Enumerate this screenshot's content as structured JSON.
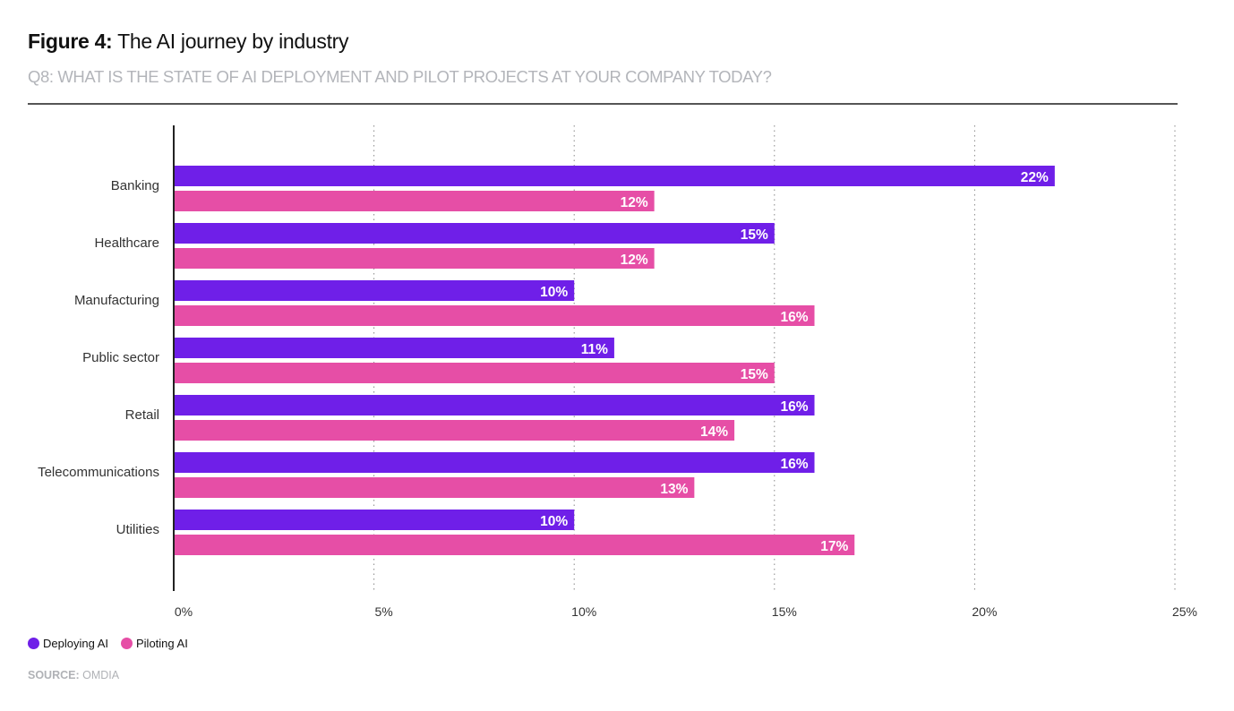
{
  "header": {
    "figure_label": "Figure 4:",
    "title": "The AI journey by industry",
    "subtitle": "Q8: WHAT IS THE STATE OF AI DEPLOYMENT AND PILOT PROJECTS AT YOUR COMPANY TODAY?"
  },
  "footer": {
    "source_label": "SOURCE:",
    "source_value": "OMDIA"
  },
  "chart_data": {
    "type": "bar",
    "orientation": "horizontal",
    "title": "The AI journey by industry",
    "xlabel": "",
    "ylabel": "",
    "categories": [
      "Banking",
      "Healthcare",
      "Manufacturing",
      "Public sector",
      "Retail",
      "Telecommunications",
      "Utilities"
    ],
    "series": [
      {
        "name": "Deploying AI",
        "color": "#6f1fe8",
        "values": [
          22,
          15,
          10,
          11,
          16,
          16,
          10
        ]
      },
      {
        "name": "Piloting AI",
        "color": "#e64ea6",
        "values": [
          12,
          12,
          16,
          15,
          14,
          13,
          17
        ]
      }
    ],
    "data_labels": [
      [
        "22%",
        "15%",
        "10%",
        "11%",
        "16%",
        "16%",
        "10%"
      ],
      [
        "12%",
        "12%",
        "16%",
        "15%",
        "14%",
        "13%",
        "17%"
      ]
    ],
    "xlim": [
      0,
      25
    ],
    "x_ticks": [
      0,
      5,
      10,
      15,
      20,
      25
    ],
    "x_tick_labels": [
      "0%",
      "5%",
      "10%",
      "15%",
      "20%",
      "25%"
    ],
    "grid": true,
    "legend_position": "bottom-left"
  }
}
